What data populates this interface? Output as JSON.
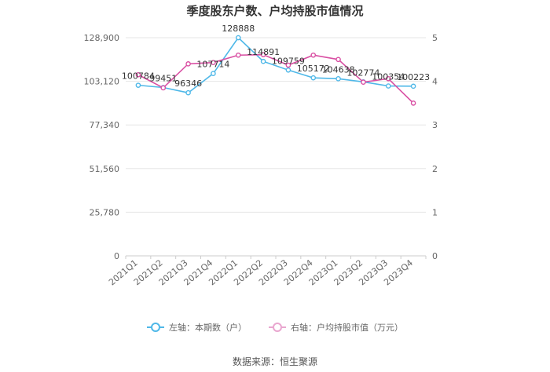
{
  "chart_data": {
    "type": "line",
    "title": "季度股东户数、户均持股市值情况",
    "categories": [
      "2021Q1",
      "2021Q2",
      "2021Q3",
      "2021Q4",
      "2022Q1",
      "2022Q2",
      "2022Q3",
      "2022Q4",
      "2023Q1",
      "2023Q2",
      "2023Q3",
      "2023Q4"
    ],
    "y_left": {
      "ticks": [
        "0",
        "25,780",
        "51,560",
        "77,340",
        "103,120",
        "128,900"
      ],
      "range": [
        0,
        128900
      ]
    },
    "y_right": {
      "ticks": [
        "0",
        "1",
        "2",
        "3",
        "4",
        "5"
      ],
      "range": [
        0,
        5
      ]
    },
    "series": [
      {
        "name": "左轴：本期数（户）",
        "axis": "left",
        "color": "#4fb8e8",
        "values": [
          100784,
          99451,
          96346,
          107714,
          128888,
          114891,
          109759,
          105172,
          104638,
          102774,
          100354,
          100223
        ],
        "labels": [
          "100784",
          "99451",
          "96346",
          "107714",
          "128888",
          "114891",
          "109759",
          "105172",
          "104638",
          "102774",
          "100354",
          "100223"
        ]
      },
      {
        "name": "右轴：户均持股市值（万元）",
        "axis": "right",
        "color": "#d94fa3",
        "values": [
          4.15,
          3.85,
          4.4,
          4.43,
          4.6,
          4.61,
          4.37,
          4.6,
          4.5,
          3.98,
          4.06,
          3.5
        ]
      }
    ],
    "grid": true,
    "legend_position": "bottom"
  },
  "source": "数据来源：恒生聚源"
}
